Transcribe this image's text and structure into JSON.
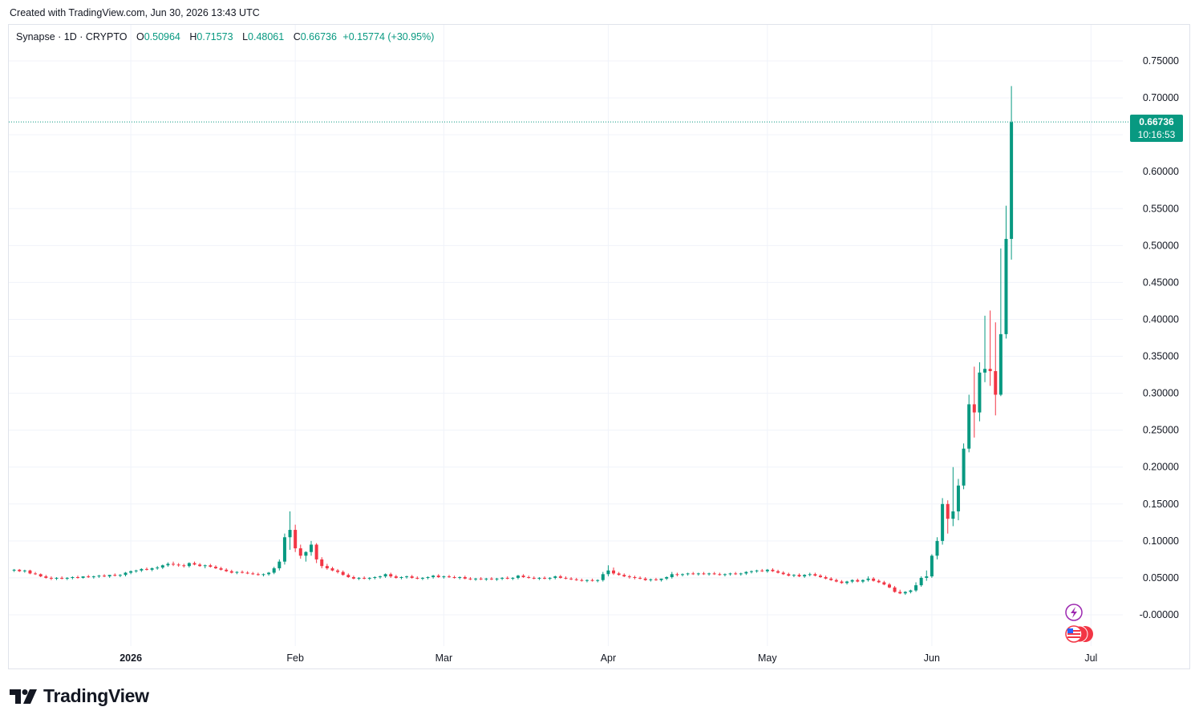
{
  "header": {
    "created_text": "Created with TradingView.com, Jun 30, 2026 13:43 UTC"
  },
  "legend": {
    "symbol": "Synapse · 1D · CRYPTO",
    "open_label": "O",
    "open": "0.50964",
    "high_label": "H",
    "high": "0.71573",
    "low_label": "L",
    "low": "0.48061",
    "close_label": "C",
    "close": "0.66736",
    "change": "+0.15774 (+30.95%)"
  },
  "price_tag": {
    "price": "0.66736",
    "countdown": "10:16:53"
  },
  "footer": {
    "brand": "TradingView"
  },
  "icons": {
    "logo": "tradingview-logo-icon",
    "event": "lightning-icon",
    "flag": "us-flag-icon"
  },
  "colors": {
    "up": "#089981",
    "down": "#f23645",
    "grid": "#f0f3fa"
  },
  "chart_data": {
    "type": "candlestick",
    "title": "Synapse · 1D · CRYPTO",
    "ylim": [
      -0.03,
      0.78
    ],
    "y_ticks": [
      "0.75000",
      "0.70000",
      "0.60000",
      "0.55000",
      "0.50000",
      "0.45000",
      "0.40000",
      "0.35000",
      "0.30000",
      "0.25000",
      "0.20000",
      "0.15000",
      "0.10000",
      "0.05000",
      "-0.00000"
    ],
    "x_ticks": [
      {
        "label": "2026",
        "date": "2026-01-01",
        "bold": true
      },
      {
        "label": "Feb",
        "date": "2026-02-01",
        "bold": false
      },
      {
        "label": "Mar",
        "date": "2026-03-01",
        "bold": false
      },
      {
        "label": "Apr",
        "date": "2026-04-01",
        "bold": false
      },
      {
        "label": "May",
        "date": "2026-05-01",
        "bold": false
      },
      {
        "label": "Jun",
        "date": "2026-06-01",
        "bold": false
      },
      {
        "label": "Jul",
        "date": "2026-07-01",
        "bold": false
      }
    ],
    "x_range": [
      "2025-12-09",
      "2026-07-07"
    ],
    "last_price": 0.66736,
    "grid": true,
    "start_date": "2025-12-10",
    "candles": [
      [
        0.06,
        0.062,
        0.058,
        0.061
      ],
      [
        0.061,
        0.062,
        0.058,
        0.059
      ],
      [
        0.059,
        0.061,
        0.057,
        0.06
      ],
      [
        0.06,
        0.061,
        0.055,
        0.056
      ],
      [
        0.056,
        0.058,
        0.054,
        0.055
      ],
      [
        0.055,
        0.056,
        0.051,
        0.052
      ],
      [
        0.052,
        0.054,
        0.049,
        0.05
      ],
      [
        0.05,
        0.052,
        0.047,
        0.049
      ],
      [
        0.049,
        0.051,
        0.047,
        0.05
      ],
      [
        0.05,
        0.052,
        0.048,
        0.049
      ],
      [
        0.049,
        0.051,
        0.047,
        0.05
      ],
      [
        0.05,
        0.052,
        0.048,
        0.051
      ],
      [
        0.051,
        0.053,
        0.049,
        0.05
      ],
      [
        0.05,
        0.052,
        0.049,
        0.052
      ],
      [
        0.052,
        0.054,
        0.05,
        0.051
      ],
      [
        0.051,
        0.053,
        0.049,
        0.052
      ],
      [
        0.052,
        0.054,
        0.05,
        0.053
      ],
      [
        0.053,
        0.055,
        0.051,
        0.052
      ],
      [
        0.052,
        0.054,
        0.05,
        0.054
      ],
      [
        0.054,
        0.056,
        0.052,
        0.053
      ],
      [
        0.053,
        0.055,
        0.051,
        0.054
      ],
      [
        0.054,
        0.058,
        0.052,
        0.057
      ],
      [
        0.057,
        0.06,
        0.055,
        0.059
      ],
      [
        0.059,
        0.061,
        0.057,
        0.06
      ],
      [
        0.06,
        0.063,
        0.058,
        0.062
      ],
      [
        0.062,
        0.064,
        0.06,
        0.061
      ],
      [
        0.061,
        0.064,
        0.059,
        0.063
      ],
      [
        0.063,
        0.066,
        0.061,
        0.064
      ],
      [
        0.064,
        0.068,
        0.062,
        0.067
      ],
      [
        0.067,
        0.071,
        0.065,
        0.069
      ],
      [
        0.069,
        0.072,
        0.066,
        0.068
      ],
      [
        0.068,
        0.07,
        0.065,
        0.067
      ],
      [
        0.067,
        0.069,
        0.064,
        0.066
      ],
      [
        0.066,
        0.071,
        0.064,
        0.07
      ],
      [
        0.07,
        0.072,
        0.067,
        0.068
      ],
      [
        0.068,
        0.07,
        0.065,
        0.066
      ],
      [
        0.066,
        0.068,
        0.063,
        0.067
      ],
      [
        0.067,
        0.069,
        0.064,
        0.065
      ],
      [
        0.065,
        0.067,
        0.062,
        0.063
      ],
      [
        0.063,
        0.065,
        0.06,
        0.061
      ],
      [
        0.061,
        0.063,
        0.058,
        0.059
      ],
      [
        0.059,
        0.061,
        0.056,
        0.057
      ],
      [
        0.057,
        0.059,
        0.055,
        0.058
      ],
      [
        0.058,
        0.06,
        0.056,
        0.057
      ],
      [
        0.057,
        0.059,
        0.055,
        0.056
      ],
      [
        0.056,
        0.058,
        0.054,
        0.055
      ],
      [
        0.055,
        0.057,
        0.053,
        0.054
      ],
      [
        0.054,
        0.056,
        0.052,
        0.055
      ],
      [
        0.055,
        0.058,
        0.053,
        0.057
      ],
      [
        0.057,
        0.065,
        0.055,
        0.063
      ],
      [
        0.063,
        0.075,
        0.06,
        0.072
      ],
      [
        0.072,
        0.11,
        0.068,
        0.105
      ],
      [
        0.105,
        0.14,
        0.088,
        0.115
      ],
      [
        0.115,
        0.122,
        0.085,
        0.09
      ],
      [
        0.09,
        0.095,
        0.076,
        0.08
      ],
      [
        0.08,
        0.086,
        0.072,
        0.085
      ],
      [
        0.085,
        0.1,
        0.08,
        0.095
      ],
      [
        0.095,
        0.097,
        0.07,
        0.075
      ],
      [
        0.075,
        0.078,
        0.063,
        0.066
      ],
      [
        0.066,
        0.069,
        0.061,
        0.063
      ],
      [
        0.063,
        0.065,
        0.059,
        0.06
      ],
      [
        0.06,
        0.062,
        0.056,
        0.058
      ],
      [
        0.058,
        0.06,
        0.053,
        0.054
      ],
      [
        0.054,
        0.056,
        0.05,
        0.051
      ],
      [
        0.051,
        0.053,
        0.048,
        0.049
      ],
      [
        0.049,
        0.051,
        0.047,
        0.05
      ],
      [
        0.05,
        0.052,
        0.048,
        0.049
      ],
      [
        0.049,
        0.051,
        0.047,
        0.05
      ],
      [
        0.05,
        0.052,
        0.048,
        0.051
      ],
      [
        0.051,
        0.053,
        0.049,
        0.052
      ],
      [
        0.052,
        0.056,
        0.05,
        0.055
      ],
      [
        0.055,
        0.057,
        0.05,
        0.052
      ],
      [
        0.052,
        0.054,
        0.049,
        0.05
      ],
      [
        0.05,
        0.052,
        0.048,
        0.051
      ],
      [
        0.051,
        0.053,
        0.049,
        0.052
      ],
      [
        0.052,
        0.054,
        0.049,
        0.05
      ],
      [
        0.05,
        0.052,
        0.048,
        0.049
      ],
      [
        0.049,
        0.051,
        0.047,
        0.05
      ],
      [
        0.05,
        0.052,
        0.048,
        0.051
      ],
      [
        0.051,
        0.054,
        0.049,
        0.053
      ],
      [
        0.053,
        0.055,
        0.05,
        0.051
      ],
      [
        0.051,
        0.053,
        0.049,
        0.052
      ],
      [
        0.052,
        0.054,
        0.05,
        0.051
      ],
      [
        0.051,
        0.053,
        0.049,
        0.05
      ],
      [
        0.05,
        0.052,
        0.048,
        0.051
      ],
      [
        0.051,
        0.053,
        0.048,
        0.049
      ],
      [
        0.049,
        0.051,
        0.047,
        0.048
      ],
      [
        0.048,
        0.05,
        0.046,
        0.049
      ],
      [
        0.049,
        0.051,
        0.047,
        0.048
      ],
      [
        0.048,
        0.05,
        0.046,
        0.049
      ],
      [
        0.049,
        0.051,
        0.047,
        0.048
      ],
      [
        0.048,
        0.05,
        0.046,
        0.049
      ],
      [
        0.049,
        0.051,
        0.047,
        0.05
      ],
      [
        0.05,
        0.052,
        0.048,
        0.049
      ],
      [
        0.049,
        0.051,
        0.047,
        0.05
      ],
      [
        0.05,
        0.054,
        0.048,
        0.053
      ],
      [
        0.053,
        0.055,
        0.05,
        0.051
      ],
      [
        0.051,
        0.053,
        0.049,
        0.05
      ],
      [
        0.05,
        0.052,
        0.048,
        0.049
      ],
      [
        0.049,
        0.051,
        0.047,
        0.05
      ],
      [
        0.05,
        0.052,
        0.048,
        0.049
      ],
      [
        0.049,
        0.051,
        0.047,
        0.05
      ],
      [
        0.05,
        0.053,
        0.048,
        0.052
      ],
      [
        0.052,
        0.054,
        0.049,
        0.05
      ],
      [
        0.05,
        0.052,
        0.048,
        0.049
      ],
      [
        0.049,
        0.051,
        0.047,
        0.048
      ],
      [
        0.048,
        0.05,
        0.046,
        0.047
      ],
      [
        0.047,
        0.049,
        0.045,
        0.046
      ],
      [
        0.046,
        0.048,
        0.044,
        0.047
      ],
      [
        0.047,
        0.049,
        0.045,
        0.046
      ],
      [
        0.046,
        0.048,
        0.044,
        0.047
      ],
      [
        0.047,
        0.058,
        0.045,
        0.055
      ],
      [
        0.055,
        0.067,
        0.052,
        0.06
      ],
      [
        0.06,
        0.064,
        0.054,
        0.056
      ],
      [
        0.056,
        0.058,
        0.053,
        0.054
      ],
      [
        0.054,
        0.056,
        0.051,
        0.052
      ],
      [
        0.052,
        0.054,
        0.049,
        0.051
      ],
      [
        0.051,
        0.053,
        0.048,
        0.05
      ],
      [
        0.05,
        0.052,
        0.048,
        0.049
      ],
      [
        0.049,
        0.051,
        0.046,
        0.047
      ],
      [
        0.047,
        0.049,
        0.045,
        0.048
      ],
      [
        0.048,
        0.05,
        0.046,
        0.047
      ],
      [
        0.047,
        0.049,
        0.045,
        0.049
      ],
      [
        0.049,
        0.052,
        0.047,
        0.051
      ],
      [
        0.051,
        0.058,
        0.049,
        0.055
      ],
      [
        0.055,
        0.057,
        0.052,
        0.054
      ],
      [
        0.054,
        0.056,
        0.052,
        0.055
      ],
      [
        0.055,
        0.057,
        0.053,
        0.056
      ],
      [
        0.056,
        0.058,
        0.054,
        0.055
      ],
      [
        0.055,
        0.057,
        0.053,
        0.056
      ],
      [
        0.056,
        0.058,
        0.054,
        0.055
      ],
      [
        0.055,
        0.057,
        0.053,
        0.056
      ],
      [
        0.056,
        0.058,
        0.054,
        0.055
      ],
      [
        0.055,
        0.057,
        0.053,
        0.054
      ],
      [
        0.054,
        0.056,
        0.052,
        0.055
      ],
      [
        0.055,
        0.057,
        0.053,
        0.056
      ],
      [
        0.056,
        0.058,
        0.054,
        0.055
      ],
      [
        0.055,
        0.057,
        0.053,
        0.056
      ],
      [
        0.056,
        0.059,
        0.054,
        0.058
      ],
      [
        0.058,
        0.06,
        0.056,
        0.059
      ],
      [
        0.059,
        0.061,
        0.057,
        0.06
      ],
      [
        0.06,
        0.062,
        0.058,
        0.059
      ],
      [
        0.059,
        0.062,
        0.057,
        0.061
      ],
      [
        0.061,
        0.063,
        0.058,
        0.059
      ],
      [
        0.059,
        0.061,
        0.056,
        0.057
      ],
      [
        0.057,
        0.059,
        0.054,
        0.055
      ],
      [
        0.055,
        0.057,
        0.052,
        0.053
      ],
      [
        0.053,
        0.055,
        0.051,
        0.054
      ],
      [
        0.054,
        0.056,
        0.051,
        0.052
      ],
      [
        0.052,
        0.055,
        0.05,
        0.054
      ],
      [
        0.054,
        0.057,
        0.052,
        0.055
      ],
      [
        0.055,
        0.057,
        0.052,
        0.053
      ],
      [
        0.053,
        0.055,
        0.05,
        0.051
      ],
      [
        0.051,
        0.053,
        0.048,
        0.049
      ],
      [
        0.049,
        0.051,
        0.046,
        0.047
      ],
      [
        0.047,
        0.049,
        0.044,
        0.045
      ],
      [
        0.045,
        0.047,
        0.042,
        0.043
      ],
      [
        0.043,
        0.046,
        0.041,
        0.045
      ],
      [
        0.045,
        0.048,
        0.043,
        0.047
      ],
      [
        0.047,
        0.049,
        0.044,
        0.045
      ],
      [
        0.045,
        0.048,
        0.043,
        0.047
      ],
      [
        0.047,
        0.052,
        0.045,
        0.049
      ],
      [
        0.049,
        0.051,
        0.045,
        0.046
      ],
      [
        0.046,
        0.048,
        0.043,
        0.044
      ],
      [
        0.044,
        0.046,
        0.04,
        0.041
      ],
      [
        0.041,
        0.043,
        0.036,
        0.037
      ],
      [
        0.037,
        0.039,
        0.03,
        0.031
      ],
      [
        0.031,
        0.034,
        0.028,
        0.029
      ],
      [
        0.029,
        0.032,
        0.027,
        0.031
      ],
      [
        0.031,
        0.034,
        0.029,
        0.033
      ],
      [
        0.033,
        0.044,
        0.031,
        0.04
      ],
      [
        0.04,
        0.052,
        0.038,
        0.05
      ],
      [
        0.05,
        0.06,
        0.046,
        0.052
      ],
      [
        0.052,
        0.082,
        0.05,
        0.08
      ],
      [
        0.08,
        0.105,
        0.075,
        0.1
      ],
      [
        0.1,
        0.158,
        0.095,
        0.15
      ],
      [
        0.15,
        0.155,
        0.11,
        0.13
      ],
      [
        0.13,
        0.2,
        0.12,
        0.14
      ],
      [
        0.14,
        0.184,
        0.128,
        0.175
      ],
      [
        0.175,
        0.232,
        0.17,
        0.225
      ],
      [
        0.225,
        0.298,
        0.22,
        0.285
      ],
      [
        0.285,
        0.336,
        0.24,
        0.274
      ],
      [
        0.274,
        0.342,
        0.262,
        0.328
      ],
      [
        0.328,
        0.405,
        0.315,
        0.333
      ],
      [
        0.333,
        0.412,
        0.31,
        0.33
      ],
      [
        0.33,
        0.396,
        0.27,
        0.298
      ],
      [
        0.298,
        0.496,
        0.296,
        0.38
      ],
      [
        0.38,
        0.554,
        0.374,
        0.509
      ],
      [
        0.509,
        0.716,
        0.481,
        0.667
      ]
    ]
  }
}
